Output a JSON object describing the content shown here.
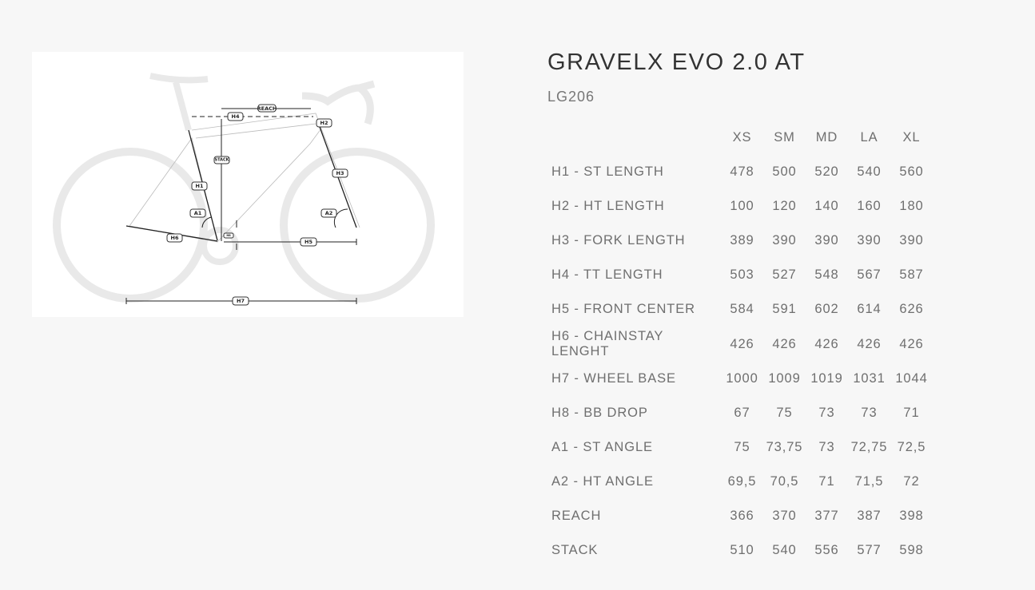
{
  "product": {
    "title": "GRAVELX EVO 2.0 AT",
    "code": "LG206"
  },
  "diagram": {
    "labels": {
      "reach": "REACH",
      "h4": "H4",
      "h2": "H2",
      "stack": "STACK",
      "h3": "H3",
      "h1": "H1",
      "a1": "A1",
      "a2": "A2",
      "h6": "H6",
      "h8": "H8",
      "h5": "H5",
      "h7": "H7"
    }
  },
  "geometry": {
    "sizes": [
      "XS",
      "SM",
      "MD",
      "LA",
      "XL"
    ],
    "rows": [
      {
        "label": "H1 - ST LENGTH",
        "values": [
          "478",
          "500",
          "520",
          "540",
          "560"
        ]
      },
      {
        "label": "H2 - HT LENGTH",
        "values": [
          "100",
          "120",
          "140",
          "160",
          "180"
        ]
      },
      {
        "label": "H3 - FORK LENGTH",
        "values": [
          "389",
          "390",
          "390",
          "390",
          "390"
        ]
      },
      {
        "label": "H4 - TT LENGTH",
        "values": [
          "503",
          "527",
          "548",
          "567",
          "587"
        ]
      },
      {
        "label": "H5 - FRONT CENTER",
        "values": [
          "584",
          "591",
          "602",
          "614",
          "626"
        ]
      },
      {
        "label": "H6 - CHAINSTAY LENGHT",
        "values": [
          "426",
          "426",
          "426",
          "426",
          "426"
        ]
      },
      {
        "label": "H7 - WHEEL BASE",
        "values": [
          "1000",
          "1009",
          "1019",
          "1031",
          "1044"
        ]
      },
      {
        "label": "H8 - BB DROP",
        "values": [
          "67",
          "75",
          "73",
          "73",
          "71"
        ]
      },
      {
        "label": "A1 - ST ANGLE",
        "values": [
          "75",
          "73,75",
          "73",
          "72,75",
          "72,5"
        ]
      },
      {
        "label": "A2 - HT ANGLE",
        "values": [
          "69,5",
          "70,5",
          "71",
          "71,5",
          "72"
        ]
      },
      {
        "label": "REACH",
        "values": [
          "366",
          "370",
          "377",
          "387",
          "398"
        ]
      },
      {
        "label": "STACK",
        "values": [
          "510",
          "540",
          "556",
          "577",
          "598"
        ]
      }
    ]
  }
}
